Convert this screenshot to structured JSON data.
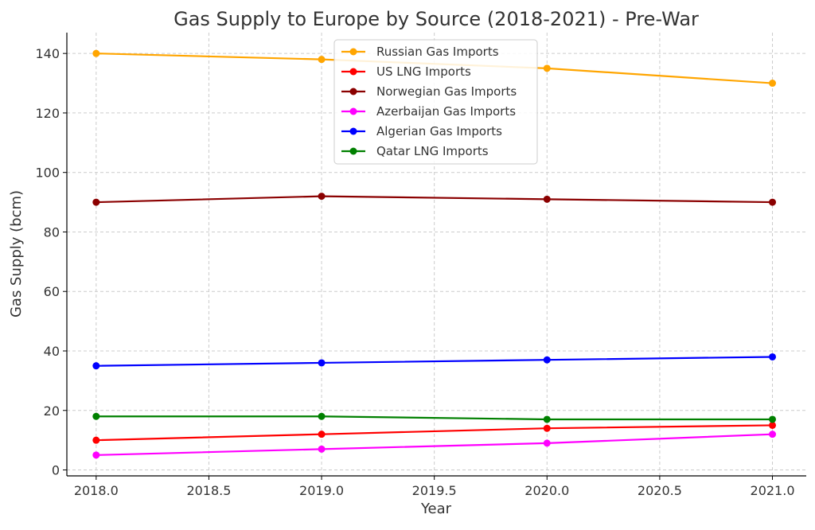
{
  "chart_data": {
    "type": "line",
    "title": "Gas Supply to Europe by Source (2018-2021) - Pre-War",
    "xlabel": "Year",
    "ylabel": "Gas Supply (bcm)",
    "x": [
      2018,
      2019,
      2020,
      2021
    ],
    "xlim": [
      2017.87,
      2021.15
    ],
    "ylim": [
      -2,
      147
    ],
    "xticks": [
      2018.0,
      2018.5,
      2019.0,
      2019.5,
      2020.0,
      2020.5,
      2021.0
    ],
    "xtick_labels": [
      "2018.0",
      "2018.5",
      "2019.0",
      "2019.5",
      "2020.0",
      "2020.5",
      "2021.0"
    ],
    "yticks": [
      0,
      20,
      40,
      60,
      80,
      100,
      120,
      140
    ],
    "ytick_labels": [
      "0",
      "20",
      "40",
      "60",
      "80",
      "100",
      "120",
      "140"
    ],
    "grid": true,
    "legend_position": "top-center",
    "series": [
      {
        "name": "Russian Gas Imports",
        "color": "#ffa500",
        "values": [
          140,
          138,
          135,
          130
        ]
      },
      {
        "name": "US LNG Imports",
        "color": "#ff0000",
        "values": [
          10,
          12,
          14,
          15
        ]
      },
      {
        "name": "Norwegian Gas Imports",
        "color": "#8b0000",
        "values": [
          90,
          92,
          91,
          90
        ]
      },
      {
        "name": "Azerbaijan Gas Imports",
        "color": "#ff00ff",
        "values": [
          5,
          7,
          9,
          12
        ]
      },
      {
        "name": "Algerian Gas Imports",
        "color": "#0000ff",
        "values": [
          35,
          36,
          37,
          38
        ]
      },
      {
        "name": "Qatar LNG Imports",
        "color": "#008000",
        "values": [
          18,
          18,
          17,
          17
        ]
      }
    ]
  }
}
